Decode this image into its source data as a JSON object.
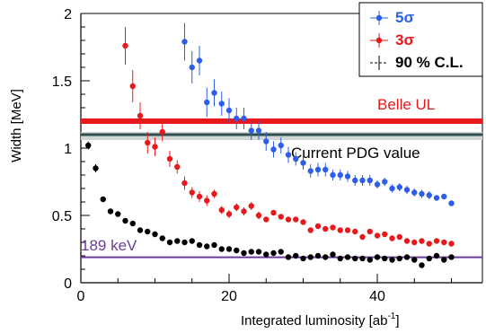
{
  "chart_data": {
    "type": "scatter",
    "xlabel": "Integrated luminosity [ab",
    "xlabel_sup": "-1",
    "xlabel_end": "]",
    "ylabel": "Width [MeV]",
    "xlim": [
      0,
      52
    ],
    "ylim": [
      0,
      2
    ],
    "x_ticks": [
      0,
      20,
      40
    ],
    "y_ticks": [
      0,
      0.5,
      1,
      1.5,
      2
    ],
    "y_tick_labels": [
      "0",
      "0.5",
      "1",
      "1.5",
      "2"
    ],
    "legend_position": "top-right",
    "series": [
      {
        "name": "5σ",
        "color": "#2e5ee8",
        "x": [
          14,
          15,
          16,
          17,
          18,
          19,
          20,
          21,
          22,
          23,
          24,
          25,
          26,
          27,
          28,
          29,
          30,
          31,
          32,
          33,
          34,
          35,
          36,
          37,
          38,
          39,
          40,
          41,
          42,
          43,
          44,
          45,
          46,
          47,
          48,
          49,
          50
        ],
        "y": [
          1.79,
          1.6,
          1.65,
          1.34,
          1.41,
          1.33,
          1.28,
          1.22,
          1.22,
          1.13,
          1.13,
          1.05,
          0.99,
          1.02,
          0.95,
          0.92,
          0.89,
          0.83,
          0.84,
          0.84,
          0.8,
          0.8,
          0.79,
          0.76,
          0.76,
          0.76,
          0.73,
          0.75,
          0.7,
          0.71,
          0.69,
          0.67,
          0.66,
          0.65,
          0.63,
          0.64,
          0.59
        ],
        "err": [
          0.14,
          0.12,
          0.11,
          0.11,
          0.1,
          0.09,
          0.09,
          0.08,
          0.08,
          0.07,
          0.07,
          0.07,
          0.06,
          0.06,
          0.06,
          0.05,
          0.05,
          0.05,
          0.05,
          0.05,
          0.04,
          0.04,
          0.04,
          0.04,
          0.04,
          0.04,
          0.03,
          0.03,
          0.03,
          0.03,
          0.03,
          0.03,
          0.03,
          0.03,
          0.02,
          0.02,
          0.02
        ]
      },
      {
        "name": "3σ",
        "color": "#e8191d",
        "x": [
          6,
          7,
          8,
          9,
          10,
          11,
          12,
          13,
          14,
          15,
          16,
          17,
          18,
          19,
          20,
          21,
          22,
          23,
          24,
          25,
          26,
          27,
          28,
          29,
          30,
          31,
          32,
          33,
          34,
          35,
          36,
          37,
          38,
          39,
          40,
          41,
          42,
          43,
          44,
          45,
          46,
          47,
          48,
          49,
          50
        ],
        "y": [
          1.76,
          1.46,
          1.24,
          1.04,
          1.01,
          1.12,
          0.92,
          0.86,
          0.74,
          0.67,
          0.64,
          0.61,
          0.66,
          0.54,
          0.51,
          0.56,
          0.53,
          0.57,
          0.5,
          0.47,
          0.52,
          0.49,
          0.47,
          0.47,
          0.45,
          0.39,
          0.42,
          0.4,
          0.41,
          0.39,
          0.39,
          0.38,
          0.34,
          0.38,
          0.35,
          0.36,
          0.33,
          0.34,
          0.31,
          0.3,
          0.31,
          0.29,
          0.31,
          0.3,
          0.29
        ],
        "err": [
          0.14,
          0.12,
          0.1,
          0.08,
          0.07,
          0.07,
          0.06,
          0.05,
          0.05,
          0.04,
          0.04,
          0.04,
          0.03,
          0.03,
          0.03,
          0.03,
          0.03,
          0.03,
          0.03,
          0.02,
          0.02,
          0.02,
          0.02,
          0.02,
          0.02,
          0.02,
          0.02,
          0.02,
          0.02,
          0.02,
          0.02,
          0.02,
          0.02,
          0.02,
          0.02,
          0.02,
          0.02,
          0.02,
          0.02,
          0.02,
          0.02,
          0.02,
          0.02,
          0.02,
          0.02
        ]
      },
      {
        "name": "90 % C.L.",
        "color": "#000000",
        "x": [
          1,
          2,
          3,
          4,
          5,
          6,
          7,
          8,
          9,
          10,
          11,
          12,
          13,
          14,
          15,
          16,
          17,
          18,
          19,
          20,
          21,
          22,
          23,
          24,
          25,
          26,
          27,
          28,
          29,
          30,
          31,
          32,
          33,
          34,
          35,
          36,
          37,
          38,
          39,
          40,
          41,
          42,
          43,
          44,
          45,
          46,
          47,
          48,
          49,
          50
        ],
        "y": [
          1.02,
          0.85,
          0.62,
          0.53,
          0.51,
          0.46,
          0.44,
          0.39,
          0.38,
          0.36,
          0.33,
          0.3,
          0.31,
          0.3,
          0.31,
          0.28,
          0.27,
          0.28,
          0.25,
          0.25,
          0.24,
          0.22,
          0.23,
          0.23,
          0.21,
          0.22,
          0.23,
          0.19,
          0.2,
          0.18,
          0.19,
          0.2,
          0.19,
          0.21,
          0.18,
          0.19,
          0.18,
          0.18,
          0.17,
          0.19,
          0.18,
          0.17,
          0.18,
          0.19,
          0.17,
          0.13,
          0.18,
          0.2,
          0.17,
          0.19
        ],
        "err": [
          0.03,
          0.03,
          0.02,
          0.02,
          0.02,
          0.02,
          0.02,
          0.02,
          0.02,
          0.01,
          0.01,
          0.01,
          0.01,
          0.01,
          0.01,
          0.01,
          0.01,
          0.01,
          0.01,
          0.01,
          0.01,
          0.01,
          0.01,
          0.01,
          0.01,
          0.01,
          0.01,
          0.01,
          0.01,
          0.01,
          0.01,
          0.01,
          0.01,
          0.01,
          0.01,
          0.01,
          0.01,
          0.01,
          0.01,
          0.01,
          0.01,
          0.01,
          0.01,
          0.01,
          0.01,
          0.01,
          0.01,
          0.01,
          0.01,
          0.01
        ]
      }
    ],
    "reference_lines": [
      {
        "label": "Belle UL",
        "y": 1.2,
        "color": "#e8191d"
      },
      {
        "label": "Current PDG value",
        "y": 1.1,
        "color": "#2f4f4f"
      },
      {
        "label": "189 keV",
        "y": 0.189,
        "color": "#6a3d9a"
      }
    ]
  }
}
